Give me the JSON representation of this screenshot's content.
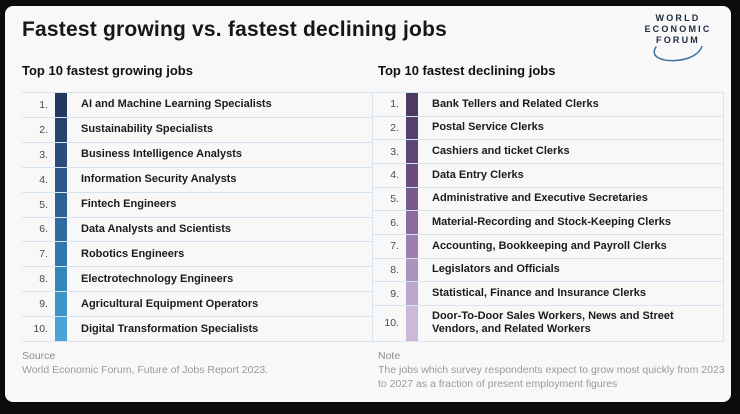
{
  "logo": {
    "lines": [
      "WORLD",
      "ECONOMIC",
      "FORUM"
    ],
    "arc_color": "#3f6f9f",
    "text_color": "#1e2b3c"
  },
  "chart_data": {
    "type": "table",
    "title": "Fastest growing vs. fastest declining jobs",
    "tables": [
      {
        "heading": "Top 10 fastest growing jobs",
        "bar_palette": "blue (dark navy to light blue, top to bottom)",
        "rows": [
          {
            "rank": "1.",
            "job": "AI and Machine Learning Specialists",
            "bar_color": "#24395f"
          },
          {
            "rank": "2.",
            "job": "Sustainability Specialists",
            "bar_color": "#26436d"
          },
          {
            "rank": "3.",
            "job": "Business Intelligence Analysts",
            "bar_color": "#294e7c"
          },
          {
            "rank": "4.",
            "job": "Information Security Analysts",
            "bar_color": "#2c5889"
          },
          {
            "rank": "5.",
            "job": "Fintech Engineers",
            "bar_color": "#2e6295"
          },
          {
            "rank": "6.",
            "job": "Data Analysts and Scientists",
            "bar_color": "#2f6da1"
          },
          {
            "rank": "7.",
            "job": "Robotics Engineers",
            "bar_color": "#3179ad"
          },
          {
            "rank": "8.",
            "job": "Electrotechnology Engineers",
            "bar_color": "#3486b9"
          },
          {
            "rank": "9.",
            "job": "Agricultural Equipment Operators",
            "bar_color": "#3d94c8"
          },
          {
            "rank": "10.",
            "job": "Digital Transformation Specialists",
            "bar_color": "#4aa2d7"
          }
        ]
      },
      {
        "heading": "Top 10 fastest declining jobs",
        "bar_palette": "purple (dark plum to light lavender, top to bottom)",
        "rows": [
          {
            "rank": "1.",
            "job": "Bank Tellers and Related Clerks",
            "bar_color": "#4c3a63"
          },
          {
            "rank": "2.",
            "job": "Postal Service Clerks",
            "bar_color": "#56406d"
          },
          {
            "rank": "3.",
            "job": "Cashiers and ticket Clerks",
            "bar_color": "#5f4676"
          },
          {
            "rank": "4.",
            "job": "Data Entry Clerks",
            "bar_color": "#6a4d80"
          },
          {
            "rank": "5.",
            "job": "Administrative and Executive Secretaries",
            "bar_color": "#795a8e"
          },
          {
            "rank": "6.",
            "job": "Material-Recording and Stock-Keeping Clerks",
            "bar_color": "#8a6c9e"
          },
          {
            "rank": "7.",
            "job": "Accounting, Bookkeeping and Payroll Clerks",
            "bar_color": "#9b80ae"
          },
          {
            "rank": "8.",
            "job": "Legislators and Officials",
            "bar_color": "#ab93bd"
          },
          {
            "rank": "9.",
            "job": "Statistical, Finance and Insurance Clerks",
            "bar_color": "#bca6cb"
          },
          {
            "rank": "10.",
            "job": "Door-To-Door Sales Workers, News and Street Vendors, and Related Workers",
            "bar_color": "#ccb8d9",
            "tall": true
          }
        ]
      }
    ]
  },
  "footer": {
    "source_label": "Source",
    "source_text": "World Economic Forum, Future of Jobs Report 2023.",
    "note_label": "Note",
    "note_text": "The jobs which survey respondents expect to grow most quickly from 2023 to 2027 as a fraction of present employment figures"
  },
  "colors": {
    "frame": "#0b0b0b",
    "panel_bg": "#f8f8f8",
    "separator": "#d7e4f1",
    "title_text": "#161616",
    "job_text": "#1b1b1b",
    "rank_text": "#4a4a4a",
    "footer_text": "#9a9a9a"
  }
}
